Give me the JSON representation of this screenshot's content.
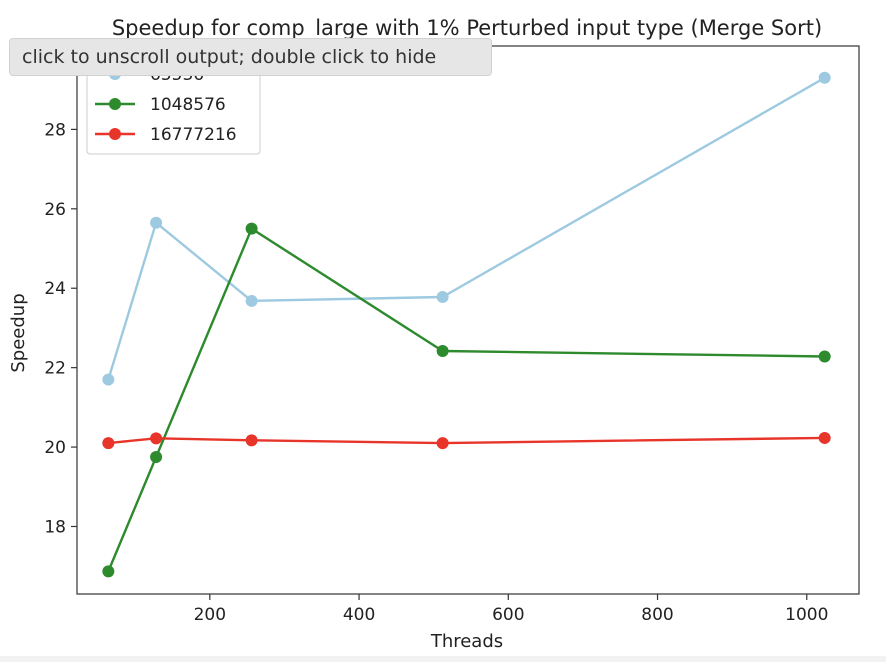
{
  "tooltip": {
    "text": "click to unscroll output; double click to hide"
  },
  "chart_data": {
    "type": "line",
    "title": "Speedup for comp_large with 1% Perturbed input type (Merge Sort)",
    "xlabel": "Threads",
    "ylabel": "Speedup",
    "xlim": [
      22,
      1070
    ],
    "ylim": [
      16.3,
      30.1
    ],
    "xticks": [
      200,
      400,
      600,
      800,
      1000
    ],
    "yticks": [
      18,
      20,
      22,
      24,
      26,
      28
    ],
    "grid": false,
    "legend": "upper-left",
    "series": [
      {
        "name": "65536",
        "color": "#9ecae1",
        "x": [
          64,
          128,
          256,
          512,
          1024
        ],
        "y": [
          21.7,
          25.65,
          23.68,
          23.78,
          29.3
        ]
      },
      {
        "name": "1048576",
        "color": "#2d8a2d",
        "x": [
          64,
          128,
          256,
          512,
          1024
        ],
        "y": [
          16.87,
          19.75,
          25.5,
          22.42,
          22.28
        ]
      },
      {
        "name": "16777216",
        "color": "#e8352a",
        "x": [
          64,
          128,
          256,
          512,
          1024
        ],
        "y": [
          20.1,
          20.22,
          20.17,
          20.1,
          20.23
        ]
      }
    ]
  }
}
